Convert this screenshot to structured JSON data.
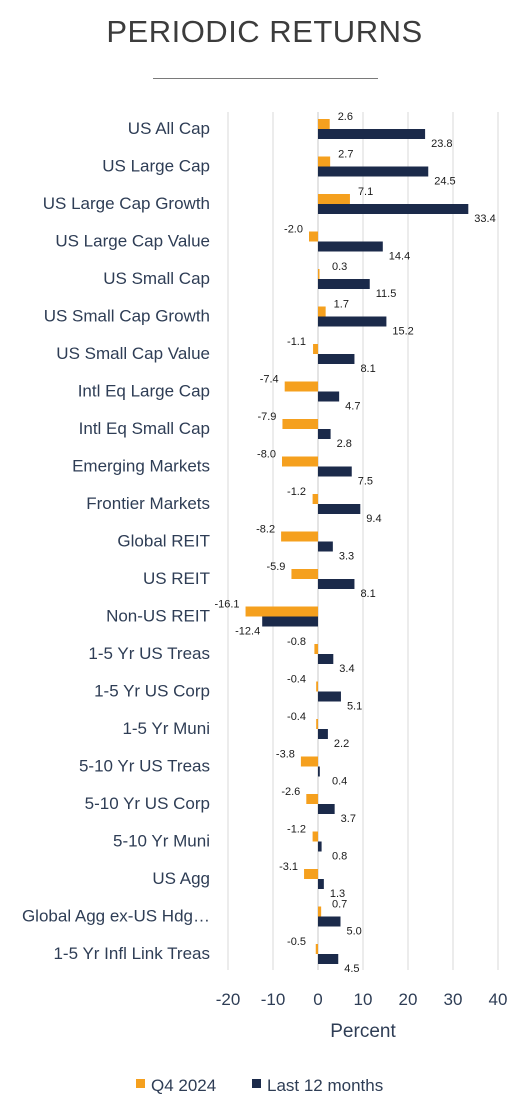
{
  "chart_data": {
    "type": "bar",
    "orientation": "horizontal",
    "title": "PERIODIC RETURNS",
    "xlabel": "Percent",
    "xlim": [
      -20,
      40
    ],
    "xticks": [
      -20,
      -10,
      0,
      10,
      20,
      30,
      40
    ],
    "grid": "vertical",
    "legend_position": "bottom",
    "categories": [
      "US All Cap",
      "US Large Cap",
      "US Large Cap Growth",
      "US Large Cap Value",
      "US Small Cap",
      "US Small Cap Growth",
      "US Small Cap Value",
      "Intl Eq Large Cap",
      "Intl Eq Small Cap",
      "Emerging Markets",
      "Frontier Markets",
      "Global REIT",
      "US REIT",
      "Non-US REIT",
      "1-5 Yr US Treas",
      "1-5 Yr US Corp",
      "1-5 Yr Muni",
      "5-10 Yr US Treas",
      "5-10 Yr US Corp",
      "5-10 Yr Muni",
      "US Agg",
      "Global Agg ex-US Hdg…",
      "1-5 Yr Infl Link Treas"
    ],
    "series": [
      {
        "name": "Q4 2024",
        "color": "#f5a01e",
        "values": [
          2.6,
          2.7,
          7.1,
          -2.0,
          0.3,
          1.7,
          -1.1,
          -7.4,
          -7.9,
          -8.0,
          -1.2,
          -8.2,
          -5.9,
          -16.1,
          -0.8,
          -0.4,
          -0.4,
          -3.8,
          -2.6,
          -1.2,
          -3.1,
          0.7,
          -0.5
        ]
      },
      {
        "name": "Last 12 months",
        "color": "#1b2a4a",
        "values": [
          23.8,
          24.5,
          33.4,
          14.4,
          11.5,
          15.2,
          8.1,
          4.7,
          2.8,
          7.5,
          9.4,
          3.3,
          8.1,
          -12.4,
          3.4,
          5.1,
          2.2,
          0.4,
          3.7,
          0.8,
          1.3,
          5.0,
          4.5
        ]
      }
    ]
  }
}
